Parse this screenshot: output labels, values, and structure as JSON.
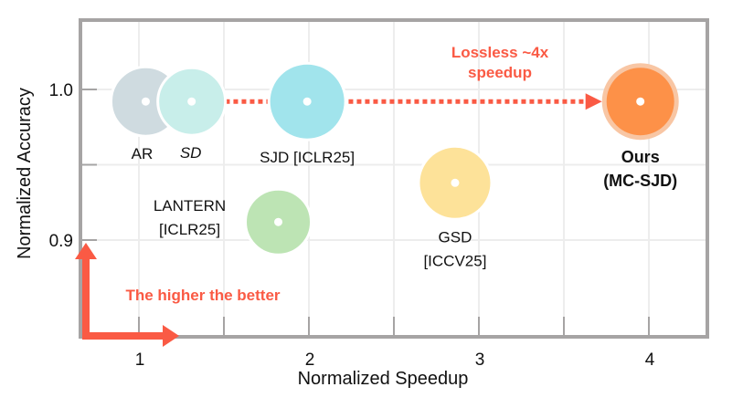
{
  "chart_data": {
    "type": "scatter",
    "title": "",
    "xlabel": "Normalized Speedup",
    "ylabel": "Normalized Accuracy",
    "xlim": [
      0.35,
      4.35
    ],
    "ylim": [
      0.838,
      1.045
    ],
    "xticks": [
      1,
      2,
      3,
      4
    ],
    "xtick_labels": [
      "1",
      "2",
      "3",
      "4"
    ],
    "x_minor_ticks": [
      1.5,
      2.5,
      3.5
    ],
    "yticks": [
      0.9,
      1.0
    ],
    "ytick_labels": [
      "0.9",
      "1.0"
    ],
    "y_minor_ticks": [
      0.95
    ],
    "grid": true,
    "points": [
      {
        "name": "AR",
        "label_lines": [
          "AR"
        ],
        "x": 1.04,
        "y": 0.992,
        "size": 38,
        "color": "#cfdbe0",
        "style": "normal",
        "label_pos": "below"
      },
      {
        "name": "SD",
        "label_lines": [
          "SD"
        ],
        "x": 1.31,
        "y": 0.992,
        "size": 37,
        "color": "#c8eeea",
        "style": "italic",
        "label_pos": "below"
      },
      {
        "name": "SJD [ICLR25]",
        "label_lines": [
          "SJD [ICLR25]"
        ],
        "x": 1.99,
        "y": 0.992,
        "size": 42,
        "color": "#a1e4ec",
        "style": "normal",
        "label_pos": "below"
      },
      {
        "name": "LANTERN [ICLR25]",
        "label_lines": [
          "LANTERN",
          "[ICLR25]"
        ],
        "x": 1.82,
        "y": 0.912,
        "size": 36,
        "color": "#bde4b4",
        "style": "normal",
        "label_pos": "left"
      },
      {
        "name": "GSD [ICCV25]",
        "label_lines": [
          "GSD",
          "[ICCV25]"
        ],
        "x": 2.86,
        "y": 0.938,
        "size": 40,
        "color": "#fde299",
        "style": "normal",
        "label_pos": "below"
      },
      {
        "name": "Ours (MC-SJD)",
        "label_lines": [
          "Ours",
          "(MC-SJD)"
        ],
        "x": 3.95,
        "y": 0.992,
        "size": 42,
        "color": "#fd9148",
        "ring_color": "#f8c6a4",
        "style": "bold",
        "label_pos": "below"
      }
    ],
    "annotations": [
      {
        "text_lines": [
          "Lossless ~4x",
          "speedup"
        ],
        "color": "#fa5a44",
        "type": "dotted-arrow",
        "from_x": 1.04,
        "to_x": 3.95,
        "y": 0.992
      },
      {
        "text_lines": [
          "The higher the better"
        ],
        "color": "#fa5a44",
        "type": "corner-arrow"
      }
    ],
    "colors": {
      "frame": "#a6a4a4",
      "grid": "#ededed",
      "accent": "#fa5a44"
    }
  }
}
